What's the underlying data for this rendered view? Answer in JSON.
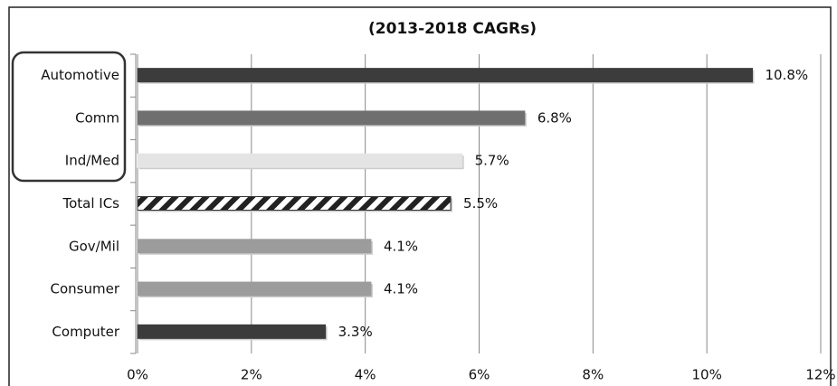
{
  "chart_data": {
    "type": "bar",
    "orientation": "horizontal",
    "title": "(2013-2018 CAGRs)",
    "categories": [
      "Automotive",
      "Comm",
      "Ind/Med",
      "Total ICs",
      "Gov/Mil",
      "Consumer",
      "Computer"
    ],
    "values": [
      10.8,
      6.8,
      5.7,
      5.5,
      4.1,
      4.1,
      3.3
    ],
    "value_labels": [
      "10.8%",
      "6.8%",
      "5.7%",
      "5.5%",
      "4.1%",
      "4.1%",
      "3.3%"
    ],
    "colors": [
      "#3c3c3c",
      "#6f6f6f",
      "#e4e4e4",
      "#333333",
      "#9c9c9c",
      "#9c9c9c",
      "#3c3c3c"
    ],
    "patterns": [
      "solid",
      "solid",
      "solid",
      "hatch",
      "solid",
      "solid",
      "solid"
    ],
    "xlim": [
      0,
      12
    ],
    "xticks": [
      {
        "value": 0,
        "label": "0%"
      },
      {
        "value": 2,
        "label": "2%"
      },
      {
        "value": 4,
        "label": "4%"
      },
      {
        "value": 6,
        "label": "6%"
      },
      {
        "value": 8,
        "label": "8%"
      },
      {
        "value": 10,
        "label": "10%"
      },
      {
        "value": 12,
        "label": "12%"
      }
    ],
    "grid": true
  }
}
